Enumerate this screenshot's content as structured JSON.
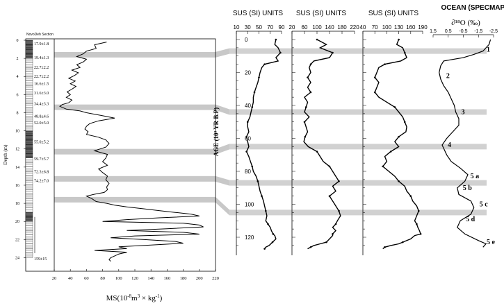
{
  "chart_data": [
    {
      "type": "line",
      "title": "",
      "column_title": "NovoDeh Section",
      "xlabel_prefix": "MS(10",
      "xlabel_exp1": "-8",
      "xlabel_mid": "m",
      "xlabel_exp2": "3",
      "xlabel_mid2": " × kg",
      "xlabel_exp3": "-1",
      "xlabel_suffix": ")",
      "ylabel": "Depth (m)",
      "xlim": [
        20,
        220
      ],
      "ylim": [
        0,
        24.5
      ],
      "xticks": [
        "20",
        "40",
        "60",
        "80",
        "100",
        "120",
        "140",
        "160",
        "180",
        "200",
        "220"
      ],
      "yticks": [
        "0",
        "2",
        "4",
        "6",
        "8",
        "10",
        "12",
        "14",
        "16",
        "18",
        "20",
        "22",
        "24"
      ],
      "ages": [
        {
          "depth": 0.4,
          "label": "17.9±1.8"
        },
        {
          "depth": 1.9,
          "label": "19.4±1.3"
        },
        {
          "depth": 3.0,
          "label": "22.7±2.2"
        },
        {
          "depth": 4.0,
          "label": "22.7±2.2"
        },
        {
          "depth": 4.8,
          "label": "16.6±1.5"
        },
        {
          "depth": 5.8,
          "label": "31.6±3.0"
        },
        {
          "depth": 7.0,
          "label": "34.4±3.3"
        },
        {
          "depth": 8.4,
          "label": "48.8±4.6"
        },
        {
          "depth": 9.1,
          "label": "52.0±5.0"
        },
        {
          "depth": 11.2,
          "label": "55.0±5.2"
        },
        {
          "depth": 13.1,
          "label": "59.7±5.7"
        },
        {
          "depth": 14.5,
          "label": "72.3±6.8"
        },
        {
          "depth": 15.5,
          "label": "74.2±7.0"
        },
        {
          "depth": 24.1,
          "label": "159±15"
        }
      ],
      "series": [
        {
          "x": [
            85,
            70,
            72,
            60,
            56,
            48,
            60,
            56,
            48,
            52,
            42,
            50,
            45,
            38,
            46,
            40,
            47,
            42,
            36,
            40,
            35,
            42,
            38,
            30,
            27,
            35,
            52,
            60,
            78,
            95,
            75,
            64,
            60,
            58,
            62,
            60,
            75,
            84,
            88,
            84,
            70,
            86,
            84,
            80,
            86,
            75,
            80,
            86,
            84,
            88,
            85,
            86,
            82,
            70,
            60,
            67,
            72,
            85,
            95,
            110,
            130,
            150,
            170,
            190,
            200,
            150,
            110,
            80,
            180,
            200,
            205,
            160,
            110,
            180,
            200,
            120,
            90,
            130,
            170,
            180,
            140,
            100,
            110,
            70,
            110,
            100,
            95,
            90,
            88,
            90
          ],
          "y": [
            0.2,
            0.5,
            0.9,
            1.2,
            1.5,
            1.8,
            2.1,
            2.4,
            2.7,
            3.0,
            3.3,
            3.6,
            3.9,
            4.2,
            4.5,
            4.8,
            5.1,
            5.4,
            5.7,
            6.0,
            6.3,
            6.6,
            6.9,
            7.1,
            7.3,
            7.6,
            7.8,
            8.0,
            8.3,
            8.6,
            8.9,
            9.2,
            9.5,
            9.8,
            10.1,
            10.4,
            10.7,
            11.0,
            11.4,
            11.8,
            12.2,
            12.6,
            13.0,
            13.4,
            13.8,
            14.2,
            14.6,
            15.0,
            15.4,
            15.8,
            16.2,
            16.5,
            16.8,
            17.0,
            17.2,
            17.5,
            17.8,
            18.0,
            18.2,
            18.4,
            18.6,
            18.8,
            19.0,
            19.2,
            19.4,
            19.6,
            19.8,
            20.0,
            20.2,
            20.4,
            20.6,
            20.8,
            21.0,
            21.2,
            21.4,
            21.6,
            21.8,
            22.0,
            22.2,
            22.4,
            22.6,
            22.8,
            23.0,
            23.2,
            23.4,
            23.6,
            23.8,
            24.0,
            24.2,
            24.4
          ]
        }
      ]
    },
    {
      "type": "line",
      "title": "SUS (SI) UNITS",
      "ylabel": "AGE (10³ YR B.P)",
      "xlim": [
        10,
        90
      ],
      "ylim": [
        -2,
        126
      ],
      "xticks": [
        "10",
        "30",
        "50",
        "70",
        "90"
      ],
      "yticks": [
        "0",
        "20",
        "40",
        "60",
        "80",
        "100",
        "120"
      ],
      "series": [
        {
          "x": [
            80,
            78,
            84,
            88,
            80,
            84,
            60,
            55,
            52,
            50,
            48,
            45,
            42,
            40,
            40,
            38,
            36,
            34,
            30,
            30,
            32,
            28,
            30,
            32,
            28,
            32,
            35,
            38,
            40,
            45,
            48,
            50,
            52,
            55,
            58,
            60,
            62,
            64,
            62,
            66,
            70,
            72,
            75,
            78,
            80,
            74,
            68,
            62,
            60
          ],
          "y": [
            0,
            3,
            5,
            8,
            11,
            13,
            15,
            17,
            20,
            23,
            26,
            29,
            32,
            35,
            38,
            41,
            44,
            47,
            50,
            53,
            56,
            59,
            62,
            65,
            68,
            71,
            74,
            77,
            80,
            83,
            86,
            89,
            92,
            95,
            98,
            101,
            104,
            107,
            110,
            112,
            114,
            116,
            118,
            119,
            121,
            123,
            125,
            126,
            127
          ]
        }
      ]
    },
    {
      "type": "line",
      "title": "SUS (SI) UNITS",
      "xlim": [
        20,
        220
      ],
      "ylim": [
        -2,
        126
      ],
      "xticks": [
        "20",
        "60",
        "100",
        "140",
        "180",
        "220"
      ],
      "series": [
        {
          "x": [
            100,
            130,
            110,
            150,
            140,
            90,
            80,
            75,
            80,
            70,
            80,
            70,
            80,
            60,
            70,
            65,
            60,
            75,
            60,
            65,
            70,
            62,
            58,
            72,
            100,
            110,
            120,
            140,
            150,
            160,
            170,
            150,
            160,
            140,
            150,
            160,
            170,
            175,
            165,
            160,
            150,
            160,
            150,
            150,
            140,
            130,
            110,
            90,
            80,
            70
          ],
          "y": [
            0,
            3,
            5,
            8,
            11,
            13,
            15,
            17,
            20,
            23,
            26,
            29,
            32,
            35,
            38,
            41,
            44,
            47,
            50,
            53,
            56,
            59,
            62,
            65,
            68,
            71,
            74,
            77,
            80,
            83,
            86,
            89,
            92,
            95,
            98,
            101,
            104,
            107,
            110,
            112,
            114,
            116,
            118,
            119,
            121,
            123,
            124,
            125,
            126,
            127
          ]
        }
      ]
    },
    {
      "type": "line",
      "title": "SUS (SI) UNITS",
      "xlim": [
        40,
        190
      ],
      "ylim": [
        -2,
        126
      ],
      "xticks": [
        "40",
        "70",
        "100",
        "130",
        "160",
        "190"
      ],
      "series": [
        {
          "x": [
            130,
            125,
            140,
            145,
            150,
            135,
            95,
            80,
            75,
            70,
            80,
            75,
            70,
            80,
            100,
            120,
            130,
            140,
            145,
            150,
            148,
            130,
            120,
            130,
            110,
            95,
            100,
            90,
            105,
            120,
            130,
            145,
            150,
            160,
            165,
            175,
            180,
            175,
            170,
            175,
            178,
            182,
            185,
            170,
            160,
            140,
            130,
            110,
            95,
            90
          ],
          "y": [
            0,
            3,
            5,
            8,
            11,
            13,
            15,
            17,
            20,
            23,
            26,
            29,
            32,
            35,
            38,
            41,
            44,
            47,
            50,
            53,
            56,
            59,
            62,
            65,
            68,
            71,
            74,
            77,
            80,
            83,
            86,
            89,
            92,
            95,
            98,
            101,
            104,
            107,
            110,
            112,
            114,
            116,
            118,
            119,
            121,
            123,
            124,
            125,
            126,
            127
          ]
        }
      ]
    },
    {
      "type": "line",
      "title": "OCEAN (SPECMAP)",
      "xlabel": "∂¹⁸O (‰)",
      "xlim": [
        1.5,
        -2.5
      ],
      "ylim": [
        -2,
        126
      ],
      "xticks": [
        "1.5",
        "0.5",
        "-0.5",
        "-1.5",
        "-2.5"
      ],
      "stage_labels": [
        {
          "age": 6,
          "label": "1"
        },
        {
          "age": 22,
          "label": "2"
        },
        {
          "age": 44,
          "label": "3"
        },
        {
          "age": 64,
          "label": "4"
        },
        {
          "age": 83,
          "label": "5 a"
        },
        {
          "age": 90,
          "label": "5 b"
        },
        {
          "age": 100,
          "label": "5 c"
        },
        {
          "age": 109,
          "label": "5 d"
        },
        {
          "age": 123,
          "label": "5 e"
        }
      ],
      "series": [
        {
          "x": [
            -2.3,
            -2.2,
            -2.0,
            -1.8,
            -1.2,
            -0.5,
            0.8,
            1.0,
            1.1,
            1.0,
            0.8,
            0.5,
            0.3,
            0.1,
            0.0,
            -0.2,
            -0.2,
            0.2,
            0.6,
            0.9,
            0.8,
            0.6,
            0.3,
            -0.3,
            -0.8,
            -0.6,
            -0.1,
            -0.2,
            -1.0,
            -1.2,
            -1.0,
            -0.3,
            -0.1,
            -0.6,
            -1.5,
            -2.0,
            -1.8
          ],
          "y": [
            0,
            3,
            5,
            7,
            9,
            11,
            13,
            16,
            20,
            24,
            28,
            32,
            36,
            40,
            44,
            48,
            52,
            56,
            60,
            64,
            66,
            70,
            74,
            78,
            82,
            86,
            90,
            94,
            98,
            102,
            106,
            110,
            114,
            118,
            122,
            124,
            126
          ]
        }
      ]
    }
  ]
}
